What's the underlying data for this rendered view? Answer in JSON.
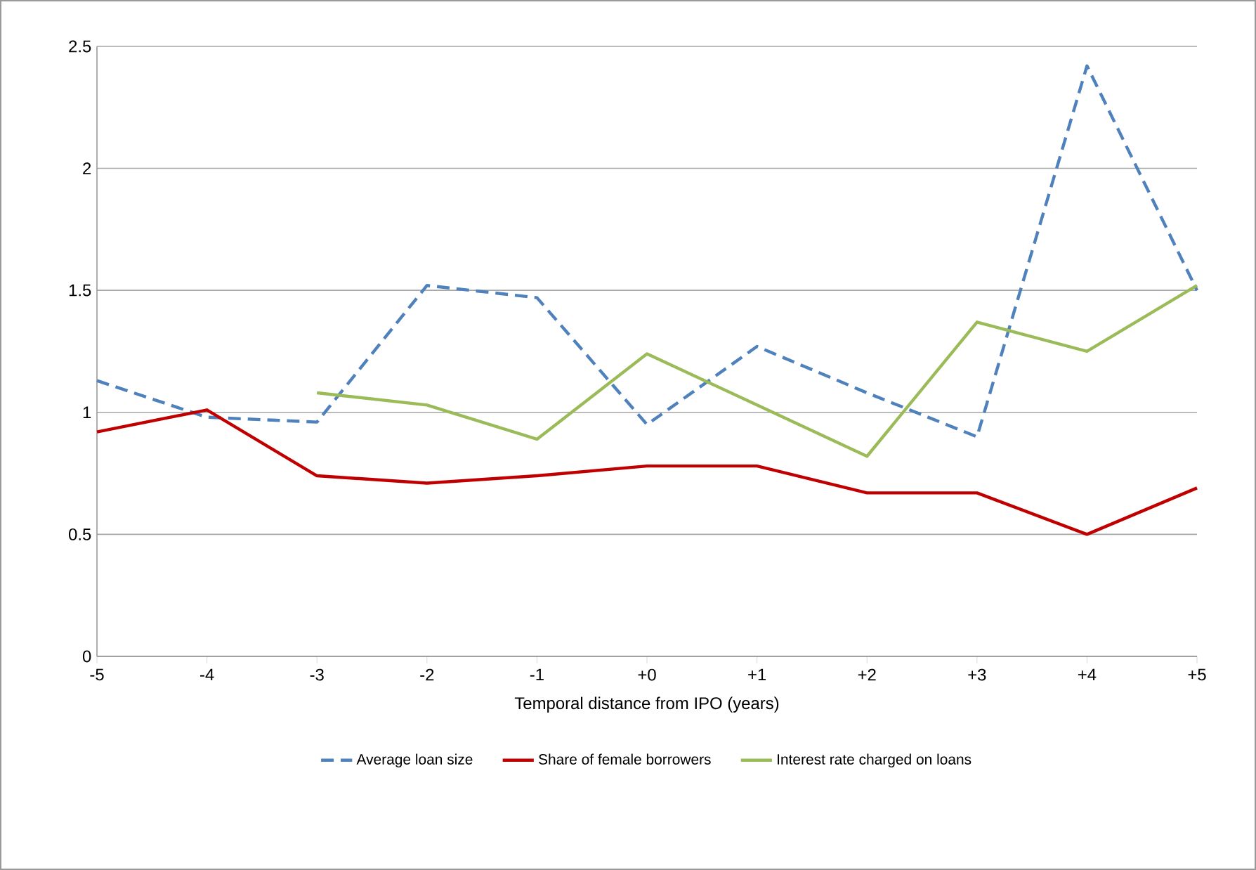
{
  "chart_data": {
    "type": "line",
    "xlabel": "Temporal distance from IPO (years)",
    "categories": [
      "-5",
      "-4",
      "-3",
      "-2",
      "-1",
      "+0",
      "+1",
      "+2",
      "+3",
      "+4",
      "+5"
    ],
    "series": [
      {
        "name": "Average loan size",
        "color": "#4f81bd",
        "line_style": "dashed",
        "values": [
          1.13,
          0.98,
          0.96,
          1.52,
          1.47,
          0.95,
          1.27,
          1.08,
          0.9,
          2.42,
          1.5
        ]
      },
      {
        "name": "Share of female borrowers",
        "color": "#c00000",
        "line_style": "solid",
        "values": [
          0.92,
          1.01,
          0.74,
          0.71,
          0.74,
          0.78,
          0.78,
          0.67,
          0.67,
          0.5,
          0.69
        ]
      },
      {
        "name": "Interest rate charged on loans",
        "color": "#9bbb59",
        "line_style": "solid",
        "values": [
          null,
          null,
          1.08,
          1.03,
          0.89,
          1.24,
          1.03,
          0.82,
          1.37,
          1.25,
          1.52
        ]
      }
    ],
    "ylim": [
      0,
      2.5
    ],
    "yticks": [
      0,
      0.5,
      1,
      1.5,
      2,
      2.5
    ],
    "grid": "y",
    "legend": "bottom",
    "marker": "none"
  }
}
